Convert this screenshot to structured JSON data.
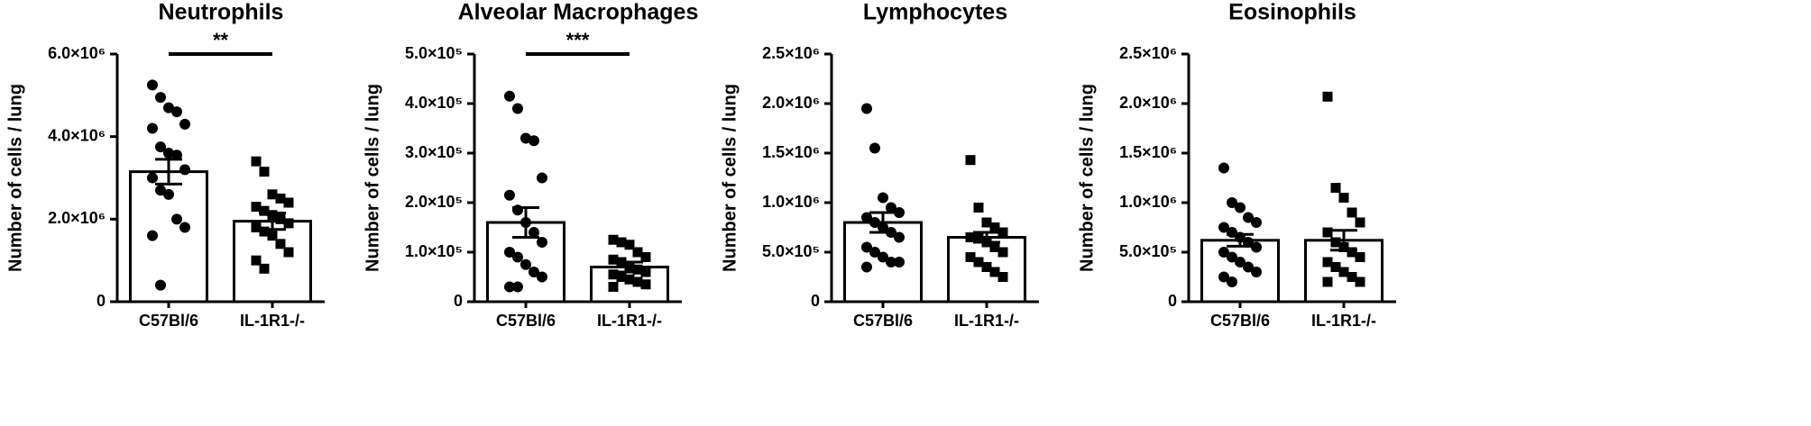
{
  "chart_data": [
    {
      "type": "bar",
      "title": "Neutrophils",
      "ylabel": "Number of cells / lung",
      "categories": [
        "C57Bl/6",
        "IL-1R1-/-"
      ],
      "markers": [
        "circle",
        "square"
      ],
      "color": "#000000",
      "values": [
        3150000,
        1950000
      ],
      "errors": [
        300000,
        200000
      ],
      "points": [
        [
          5250000,
          4950000,
          4700000,
          4600000,
          4300000,
          4200000,
          3750000,
          3600000,
          3550000,
          3200000,
          3000000,
          2700000,
          2600000,
          2000000,
          1800000,
          1600000,
          400000
        ],
        [
          3400000,
          3150000,
          2600000,
          2500000,
          2400000,
          2300000,
          2200000,
          2100000,
          2000000,
          1900000,
          1800000,
          1700000,
          1600000,
          1400000,
          1200000,
          1000000,
          800000
        ]
      ],
      "annotation": "**",
      "ylim": [
        0,
        6000000
      ],
      "yticks": [
        0,
        {
          "value": 2000000,
          "label": "2.0×10⁶"
        },
        {
          "value": 4000000,
          "label": "4.0×10⁶"
        },
        {
          "value": 6000000,
          "label": "6.0×10⁶"
        }
      ]
    },
    {
      "type": "bar",
      "title": "Alveolar Macrophages",
      "ylabel": "Number of cells / lung",
      "categories": [
        "C57Bl/6",
        "IL-1R1-/-"
      ],
      "markers": [
        "circle",
        "square"
      ],
      "color": "#000000",
      "values": [
        160000,
        70000
      ],
      "errors": [
        30000,
        10000
      ],
      "points": [
        [
          415000,
          390000,
          330000,
          325000,
          250000,
          215000,
          185000,
          160000,
          140000,
          120000,
          100000,
          90000,
          75000,
          60000,
          50000,
          30000,
          30000
        ],
        [
          125000,
          120000,
          115000,
          100000,
          90000,
          85000,
          80000,
          70000,
          65000,
          60000,
          55000,
          50000,
          45000,
          40000,
          35000,
          30000
        ]
      ],
      "annotation": "***",
      "ylim": [
        0,
        500000
      ],
      "yticks": [
        0,
        {
          "value": 100000,
          "label": "1.0×10⁵"
        },
        {
          "value": 200000,
          "label": "2.0×10⁵"
        },
        {
          "value": 300000,
          "label": "3.0×10⁵"
        },
        {
          "value": 400000,
          "label": "4.0×10⁵"
        },
        {
          "value": 500000,
          "label": "5.0×10⁵"
        }
      ]
    },
    {
      "type": "bar",
      "title": "Lymphocytes",
      "ylabel": "Number of cells / lung",
      "categories": [
        "C57Bl/6",
        "IL-1R1-/-"
      ],
      "markers": [
        "circle",
        "square"
      ],
      "color": "#000000",
      "values": [
        800000,
        650000
      ],
      "errors": [
        100000,
        50000
      ],
      "points": [
        [
          1950000,
          1550000,
          1050000,
          950000,
          900000,
          850000,
          800000,
          750000,
          700000,
          650000,
          550000,
          500000,
          450000,
          400000,
          400000,
          350000
        ],
        [
          1430000,
          950000,
          800000,
          750000,
          700000,
          650000,
          650000,
          600000,
          550000,
          500000,
          450000,
          400000,
          350000,
          300000,
          250000
        ]
      ],
      "ylim": [
        0,
        2500000
      ],
      "yticks": [
        0,
        {
          "value": 500000,
          "label": "5.0×10⁵"
        },
        {
          "value": 1000000,
          "label": "1.0×10⁶"
        },
        {
          "value": 1500000,
          "label": "1.5×10⁶"
        },
        {
          "value": 2000000,
          "label": "2.0×10⁶"
        },
        {
          "value": 2500000,
          "label": "2.5×10⁶"
        }
      ]
    },
    {
      "type": "bar",
      "title": "Eosinophils",
      "ylabel": "Number of cells / lung",
      "categories": [
        "C57Bl/6",
        "IL-1R1-/-"
      ],
      "markers": [
        "circle",
        "square"
      ],
      "color": "#000000",
      "values": [
        620000,
        620000
      ],
      "errors": [
        60000,
        100000
      ],
      "points": [
        [
          1350000,
          1000000,
          950000,
          850000,
          800000,
          750000,
          700000,
          650000,
          600000,
          550000,
          500000,
          450000,
          400000,
          350000,
          300000,
          250000,
          200000
        ],
        [
          2070000,
          1150000,
          1050000,
          900000,
          800000,
          700000,
          600000,
          550000,
          500000,
          450000,
          400000,
          350000,
          300000,
          250000,
          200000,
          200000
        ]
      ],
      "ylim": [
        0,
        2500000
      ],
      "yticks": [
        0,
        {
          "value": 500000,
          "label": "5.0×10⁵"
        },
        {
          "value": 1000000,
          "label": "1.0×10⁶"
        },
        {
          "value": 1500000,
          "label": "1.5×10⁶"
        },
        {
          "value": 2000000,
          "label": "2.0×10⁶"
        },
        {
          "value": 2500000,
          "label": "2.5×10⁶"
        }
      ]
    }
  ]
}
